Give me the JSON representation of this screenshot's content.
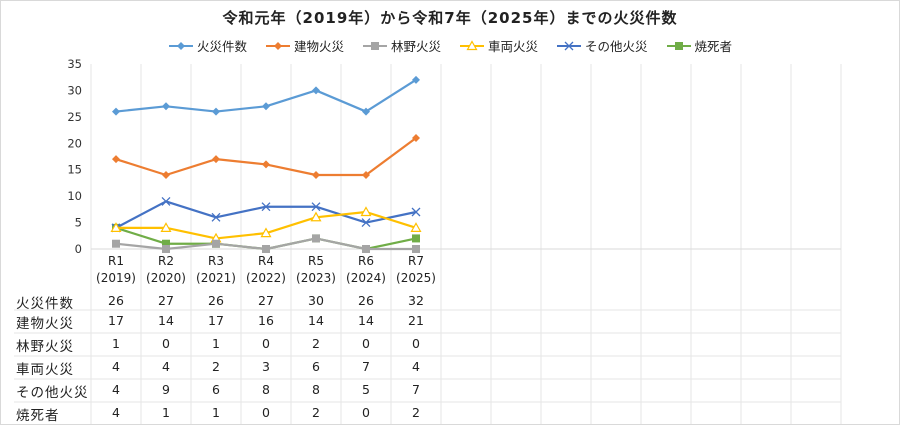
{
  "chart_data": {
    "type": "line",
    "title": "令和元年（2019年）から令和7年（2025年）までの火災件数",
    "categories": [
      "R1",
      "R2",
      "R3",
      "R4",
      "R5",
      "R6",
      "R7"
    ],
    "category_years": [
      "(2019)",
      "(2020)",
      "(2021)",
      "(2022)",
      "(2023)",
      "(2024)",
      "(2025)"
    ],
    "xlabel": "",
    "ylabel": "",
    "ylim": [
      0,
      35
    ],
    "yticks": [
      0,
      5,
      10,
      15,
      20,
      25,
      30,
      35
    ],
    "grid": "vertical",
    "legend_position": "top",
    "series": [
      {
        "name": "火災件数",
        "color": "#5B9BD5",
        "marker": "diamond",
        "values": [
          26,
          27,
          26,
          27,
          30,
          26,
          32
        ]
      },
      {
        "name": "建物火災",
        "color": "#ED7D31",
        "marker": "diamond",
        "values": [
          17,
          14,
          17,
          16,
          14,
          14,
          21
        ]
      },
      {
        "name": "林野火災",
        "color": "#A5A5A5",
        "marker": "square",
        "values": [
          1,
          0,
          1,
          0,
          2,
          0,
          0
        ]
      },
      {
        "name": "車両火災",
        "color": "#FFC000",
        "marker": "triangle-open",
        "values": [
          4,
          4,
          2,
          3,
          6,
          7,
          4
        ]
      },
      {
        "name": "その他火災",
        "color": "#4472C4",
        "marker": "x",
        "values": [
          4,
          9,
          6,
          8,
          8,
          5,
          7
        ]
      },
      {
        "name": "焼死者",
        "color": "#70AD47",
        "marker": "square",
        "values": [
          4,
          1,
          1,
          0,
          2,
          0,
          2
        ]
      }
    ],
    "data_table": true
  },
  "title": "令和元年（2019年）から令和7年（2025年）までの火災件数",
  "legend": [
    {
      "label": "火災件数",
      "icon": "diamond-marker-icon"
    },
    {
      "label": "建物火災",
      "icon": "diamond-marker-icon"
    },
    {
      "label": "林野火災",
      "icon": "square-marker-icon"
    },
    {
      "label": "車両火災",
      "icon": "triangle-marker-icon"
    },
    {
      "label": "その他火災",
      "icon": "x-marker-icon"
    },
    {
      "label": "焼死者",
      "icon": "square-marker-icon"
    }
  ],
  "table": {
    "rows": [
      {
        "label": "火災件数",
        "values": [
          "26",
          "27",
          "26",
          "27",
          "30",
          "26",
          "32"
        ]
      },
      {
        "label": "建物火災",
        "values": [
          "17",
          "14",
          "17",
          "16",
          "14",
          "14",
          "21"
        ]
      },
      {
        "label": "林野火災",
        "values": [
          "1",
          "0",
          "1",
          "0",
          "2",
          "0",
          "0"
        ]
      },
      {
        "label": "車両火災",
        "values": [
          "4",
          "4",
          "2",
          "3",
          "6",
          "7",
          "4"
        ]
      },
      {
        "label": "その他火災",
        "values": [
          "4",
          "9",
          "6",
          "8",
          "8",
          "5",
          "7"
        ]
      },
      {
        "label": "焼死者",
        "values": [
          "4",
          "1",
          "1",
          "0",
          "2",
          "0",
          "2"
        ]
      }
    ]
  }
}
